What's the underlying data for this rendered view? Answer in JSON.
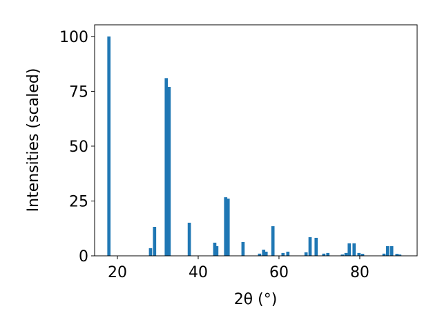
{
  "chart_data": {
    "type": "bar",
    "xlabel": "2θ (°)",
    "ylabel": "Intensities (scaled)",
    "x": [
      17.9,
      28.2,
      29.2,
      32.1,
      32.8,
      37.8,
      44.1,
      44.6,
      46.8,
      47.4,
      51.1,
      55.2,
      56.2,
      56.8,
      58.5,
      61.0,
      62.2,
      66.7,
      67.7,
      69.2,
      71.1,
      72.1,
      75.7,
      76.6,
      77.4,
      78.6,
      79.8,
      80.7,
      86.0,
      86.9,
      87.9,
      89.2,
      89.9
    ],
    "values": [
      100,
      3.5,
      13.2,
      81,
      77,
      15.1,
      6,
      4.4,
      26.7,
      26.1,
      6.3,
      1,
      2.8,
      1.9,
      13.5,
      1.3,
      1.9,
      1.6,
      8.5,
      8.2,
      1,
      1.3,
      0.6,
      1.3,
      5.7,
      5.7,
      1.3,
      0.9,
      1,
      4.4,
      4.4,
      0.9,
      0.6
    ],
    "color": "#1f77b4",
    "xlim": [
      14.36,
      94.2
    ],
    "xticks": [
      20,
      40,
      60,
      80
    ],
    "ylim": [
      0,
      105.3
    ],
    "yticks": [
      0,
      25,
      50,
      75,
      100
    ]
  }
}
